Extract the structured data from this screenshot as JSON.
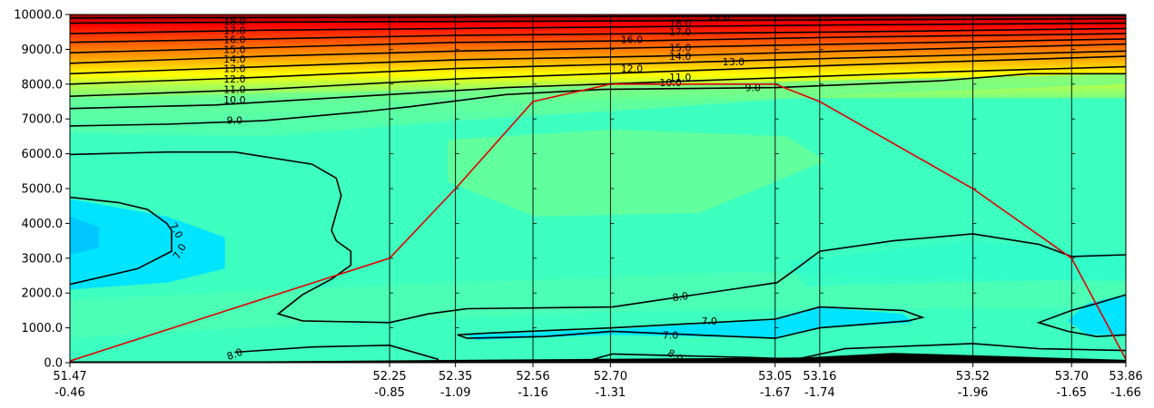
{
  "chart_data": {
    "type": "contour",
    "title": "",
    "xlabel": "",
    "ylabel": "",
    "ylim": [
      0,
      10000
    ],
    "y_ticks": [
      "0.0",
      "1000.0",
      "2000.0",
      "3000.0",
      "4000.0",
      "5000.0",
      "6000.0",
      "7000.0",
      "8000.0",
      "9000.0",
      "10000.0"
    ],
    "x_ticks": [
      {
        "pos": 51.47,
        "lat": "51.47",
        "lon": "-0.46"
      },
      {
        "pos": 52.25,
        "lat": "52.25",
        "lon": "-0.85"
      },
      {
        "pos": 52.35,
        "lat": "52.35",
        "lon": "-1.09"
      },
      {
        "pos": 52.56,
        "lat": "52.56",
        "lon": "-1.16"
      },
      {
        "pos": 52.7,
        "lat": "52.70",
        "lon": "-1.31"
      },
      {
        "pos": 53.05,
        "lat": "53.05",
        "lon": "-1.67"
      },
      {
        "pos": 53.16,
        "lat": "53.16",
        "lon": "-1.74"
      },
      {
        "pos": 53.52,
        "lat": "53.52",
        "lon": "-1.96"
      },
      {
        "pos": 53.7,
        "lat": "53.70",
        "lon": "-1.65"
      },
      {
        "pos": 53.86,
        "lat": "53.86",
        "lon": "-1.66"
      }
    ],
    "x_index_range": [
      0,
      10.9
    ],
    "x_index": [
      0,
      3.3,
      3.98,
      4.78,
      5.58,
      7.28,
      7.74,
      9.32,
      10.34,
      10.9
    ],
    "flight_path": {
      "color": "#e00000",
      "altitudes": [
        50,
        3000,
        5000,
        7500,
        8000,
        8000,
        7500,
        5000,
        3000,
        100
      ]
    },
    "contour_labels": [
      "19.0",
      "18.0",
      "17.0",
      "16.0",
      "15.0",
      "14.0",
      "13.0",
      "12.0",
      "11.0",
      "10.0",
      "9.0",
      "8.0",
      "7.0"
    ],
    "colors": {
      "cold": "#00c8ff",
      "cool": "#00e4ff",
      "mid": "#3dffc0",
      "mid_warm": "#5affaa",
      "warm_green": "#80ff80",
      "yellow": "#ffff00",
      "orange": "#ff8000",
      "red": "#ff0000",
      "dark_red": "#a00000",
      "ground": "#000000"
    }
  }
}
